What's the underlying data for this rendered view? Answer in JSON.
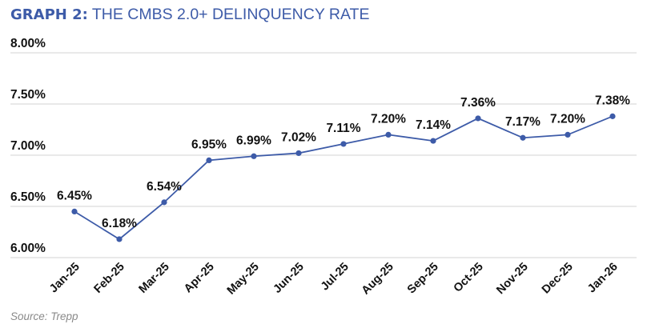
{
  "title": {
    "prefix": "GRAPH 2:",
    "text": " THE CMBS 2.0+ DELINQUENCY RATE"
  },
  "source": "Source: Trepp",
  "colors": {
    "line": "#3d5ba8",
    "title": "#3d5ba8",
    "grid": "#dcdcdc",
    "text": "#111111"
  },
  "chart_data": {
    "type": "line",
    "title": "THE CMBS 2.0+ DELINQUENCY RATE",
    "xlabel": "",
    "ylabel": "",
    "categories": [
      "Jan-25",
      "Feb-25",
      "Mar-25",
      "Apr-25",
      "May-25",
      "Jun-25",
      "Jul-25",
      "Aug-25",
      "Sep-25",
      "Oct-25",
      "Nov-25",
      "Dec-25",
      "Jan-26"
    ],
    "values": [
      6.45,
      6.18,
      6.54,
      6.95,
      6.99,
      7.02,
      7.11,
      7.2,
      7.14,
      7.36,
      7.17,
      7.2,
      7.38
    ],
    "data_labels": [
      "6.45%",
      "6.18%",
      "6.54%",
      "6.95%",
      "6.99%",
      "7.02%",
      "7.11%",
      "7.20%",
      "7.14%",
      "7.36%",
      "7.17%",
      "7.20%",
      "7.38%"
    ],
    "ylim": [
      6.0,
      8.0
    ],
    "yticks": [
      6.0,
      6.5,
      7.0,
      7.5,
      8.0
    ],
    "ytick_labels": [
      "6.00%",
      "6.50%",
      "7.00%",
      "7.50%",
      "8.00%"
    ],
    "grid": "horizontal",
    "legend": "none"
  }
}
